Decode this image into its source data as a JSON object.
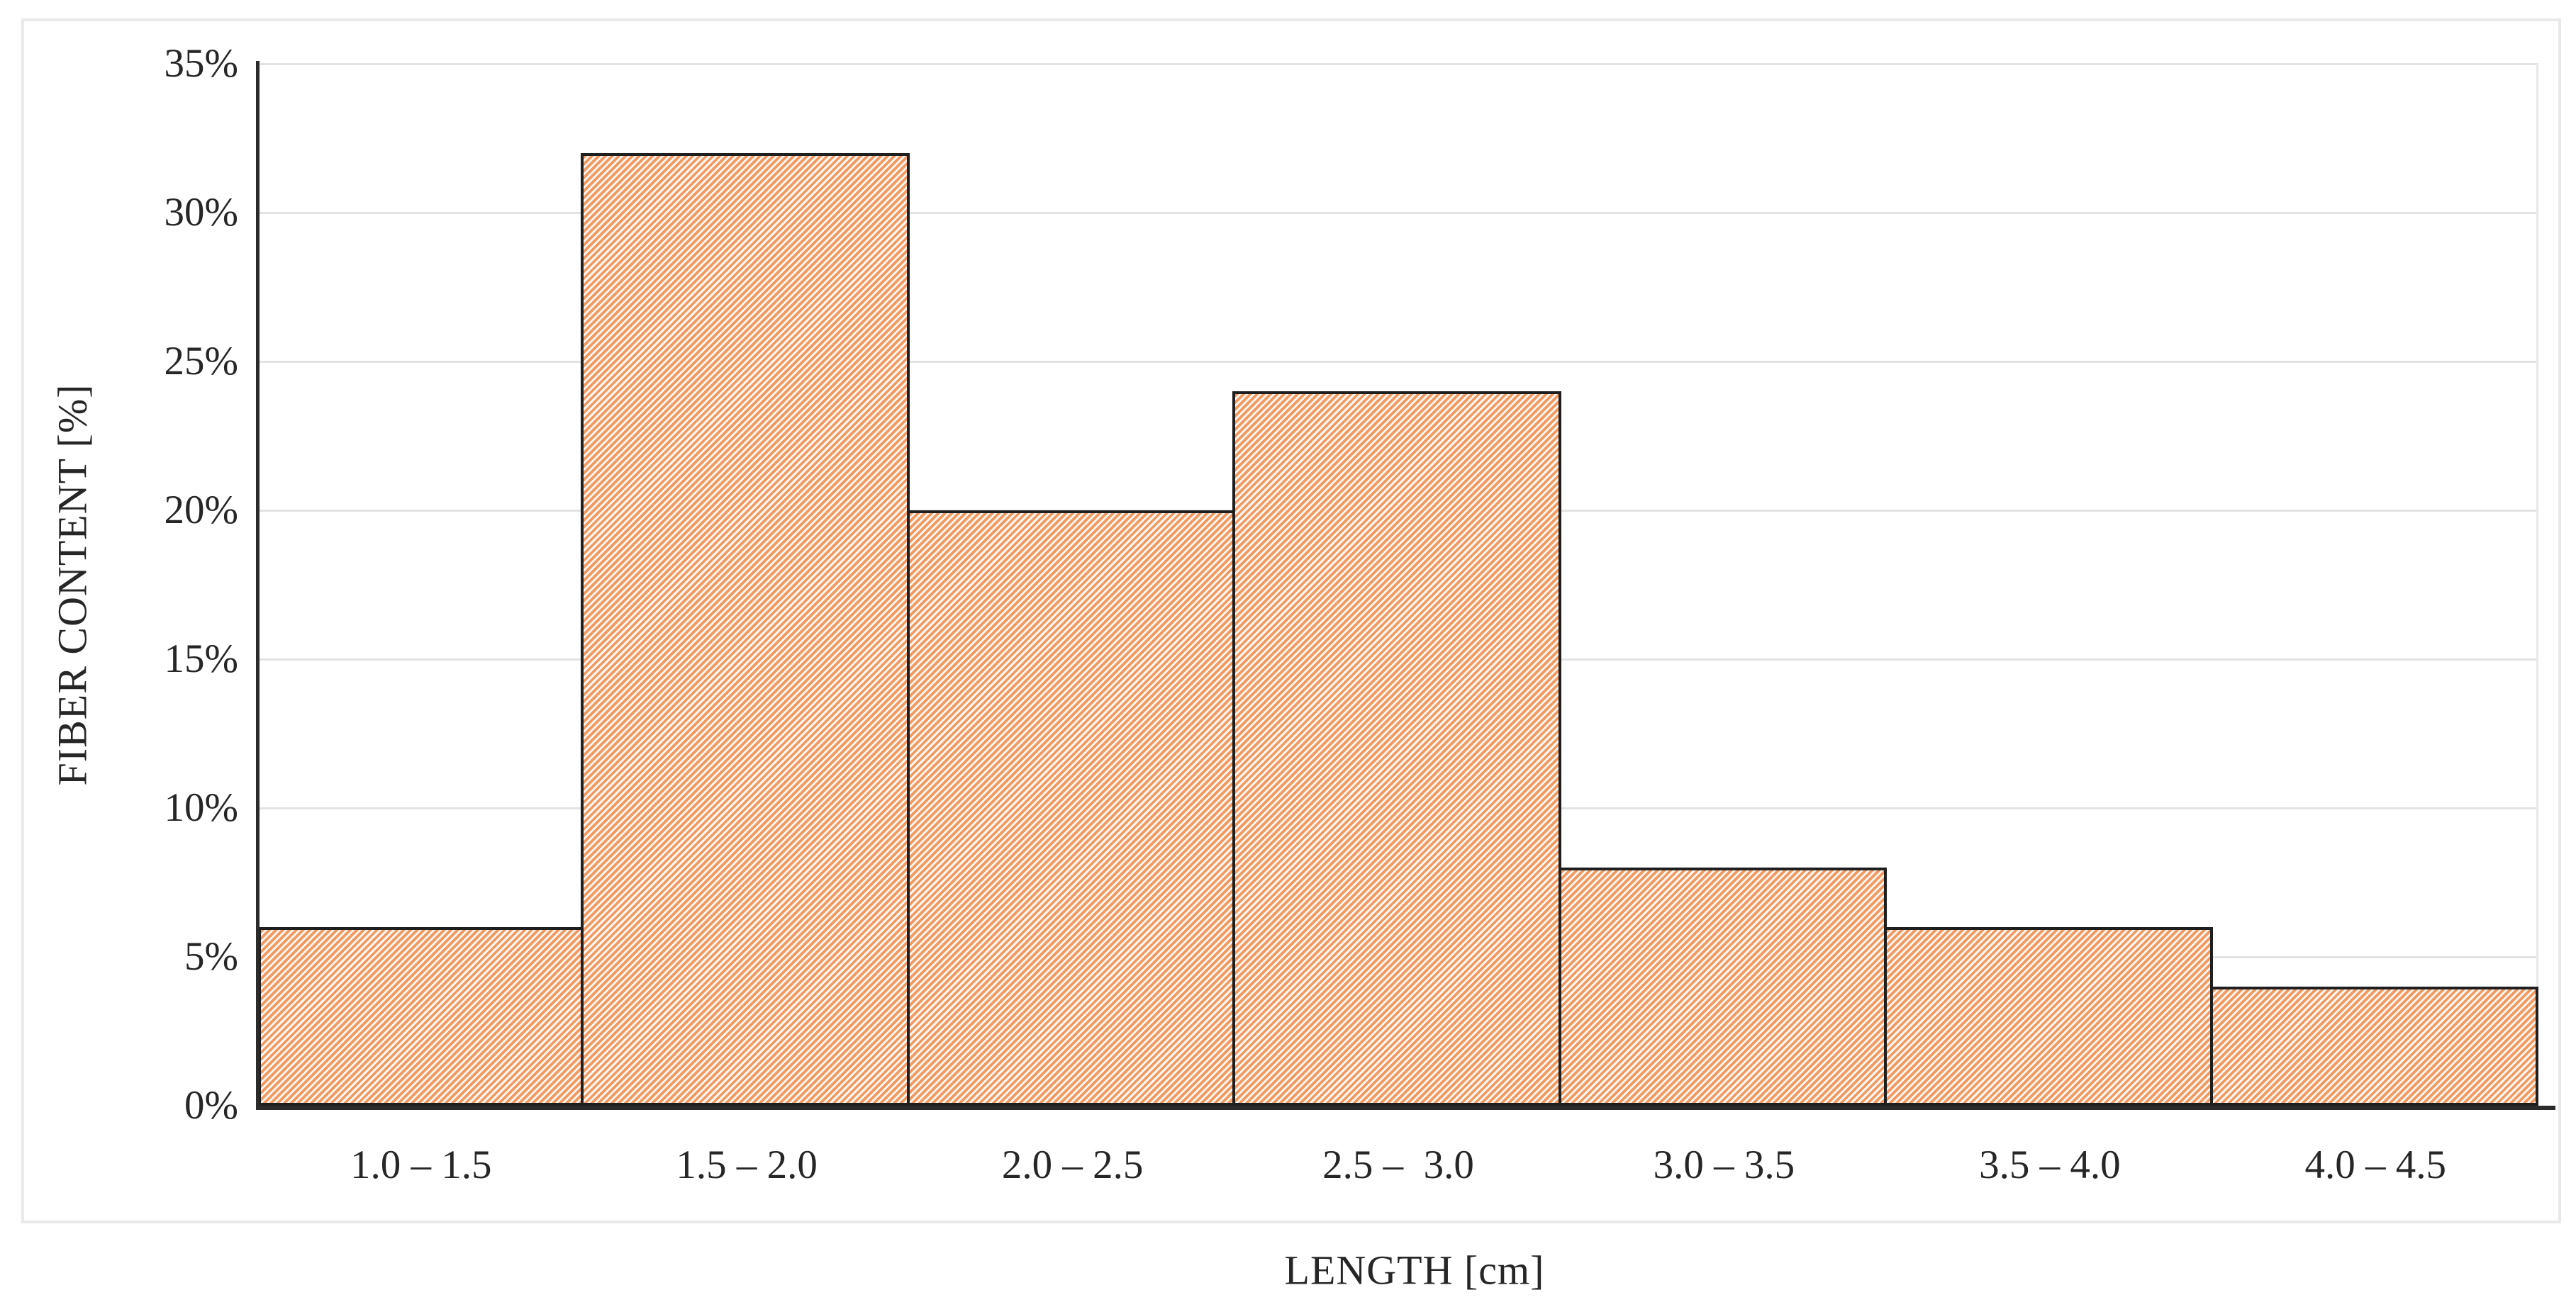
{
  "chart_data": {
    "type": "bar",
    "subtype": "histogram",
    "categories": [
      "1.0 – 1.5",
      "1.5 – 2.0",
      "2.0 – 2.5",
      "2.5 –  3.0",
      "3.0 – 3.5",
      "3.5 – 4.0",
      "4.0 – 4.5"
    ],
    "values": [
      6,
      32,
      20,
      24,
      8,
      6,
      4
    ],
    "value_unit": "%",
    "xlabel": "LENGTH [cm]",
    "ylabel": "FIBER CONTENT [%]",
    "ylim": [
      0,
      35
    ],
    "ytick_step": 5,
    "ytick_labels": [
      "0%",
      "5%",
      "10%",
      "15%",
      "20%",
      "25%",
      "30%",
      "35%"
    ],
    "grid": "horizontal",
    "legend": "none",
    "bar_gap": 0,
    "hatch_style": "diagonal-forward-slash",
    "colors": {
      "hatch_foreground": "#F29962",
      "hatch_background": "#FDF8F3",
      "bar_border": "#1F1F1F",
      "axis_line": "#2B2B2B",
      "gridline": "#E3E3E3",
      "frame_border": "#E9E9E9",
      "text": "#262626"
    }
  }
}
